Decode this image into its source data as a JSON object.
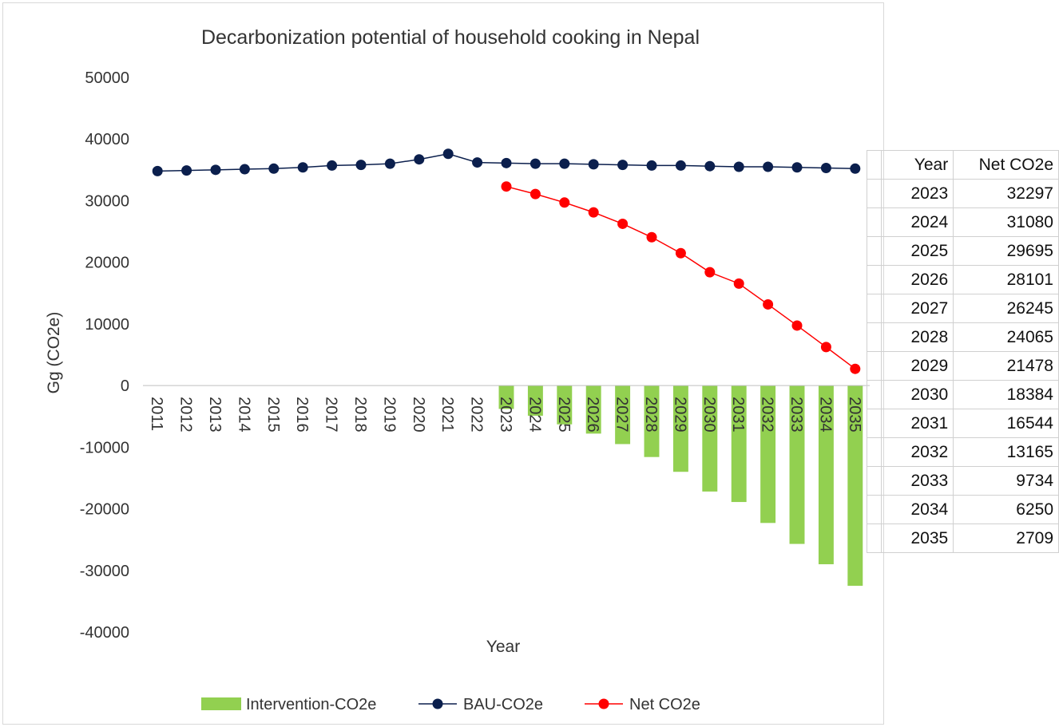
{
  "chart_data": {
    "type": "bar+line",
    "title": "Decarbonization potential of household cooking in Nepal",
    "xlabel": "Year",
    "ylabel": "Gg (CO2e)",
    "ylim": [
      -40000,
      50000
    ],
    "yticks": [
      -40000,
      -30000,
      -20000,
      -10000,
      0,
      10000,
      20000,
      30000,
      40000,
      50000
    ],
    "ytick_labels": [
      "-40000",
      "-30000",
      "-20000",
      "-10000",
      "0",
      "10000",
      "20000",
      "30000",
      "40000",
      "50000"
    ],
    "categories": [
      "2011",
      "2012",
      "2013",
      "2014",
      "2015",
      "2016",
      "2017",
      "2018",
      "2019",
      "2020",
      "2021",
      "2022",
      "2023",
      "2024",
      "2025",
      "2026",
      "2027",
      "2028",
      "2029",
      "2030",
      "2031",
      "2032",
      "2033",
      "2034",
      "2035"
    ],
    "legend_position": "bottom",
    "grid": false,
    "series": [
      {
        "name": "Intervention-CO2e",
        "type": "bar",
        "color": "#92d050",
        "values": [
          null,
          null,
          null,
          null,
          null,
          null,
          null,
          null,
          null,
          null,
          null,
          null,
          -3800,
          -4900,
          -6300,
          -7800,
          -9500,
          -11600,
          -14000,
          -17200,
          -18900,
          -22300,
          -25700,
          -29000,
          -32500
        ]
      },
      {
        "name": "BAU-CO2e",
        "type": "line",
        "color": "#0b1f4d",
        "values": [
          34800,
          34900,
          35000,
          35100,
          35200,
          35400,
          35700,
          35800,
          36000,
          36700,
          37600,
          36200,
          36100,
          36000,
          36000,
          35900,
          35800,
          35700,
          35700,
          35600,
          35500,
          35500,
          35400,
          35300,
          35200
        ]
      },
      {
        "name": "Net CO2e",
        "type": "line",
        "color": "#ff0000",
        "values": [
          null,
          null,
          null,
          null,
          null,
          null,
          null,
          null,
          null,
          null,
          null,
          null,
          32297,
          31080,
          29695,
          28101,
          26245,
          24065,
          21478,
          18384,
          16544,
          13165,
          9734,
          6250,
          2709
        ]
      }
    ]
  },
  "table": {
    "headers": [
      "Year",
      "Net CO2e"
    ],
    "rows": [
      [
        "2023",
        "32297"
      ],
      [
        "2024",
        "31080"
      ],
      [
        "2025",
        "29695"
      ],
      [
        "2026",
        "28101"
      ],
      [
        "2027",
        "26245"
      ],
      [
        "2028",
        "24065"
      ],
      [
        "2029",
        "21478"
      ],
      [
        "2030",
        "18384"
      ],
      [
        "2031",
        "16544"
      ],
      [
        "2032",
        "13165"
      ],
      [
        "2033",
        "9734"
      ],
      [
        "2034",
        "6250"
      ],
      [
        "2035",
        "2709"
      ]
    ]
  }
}
